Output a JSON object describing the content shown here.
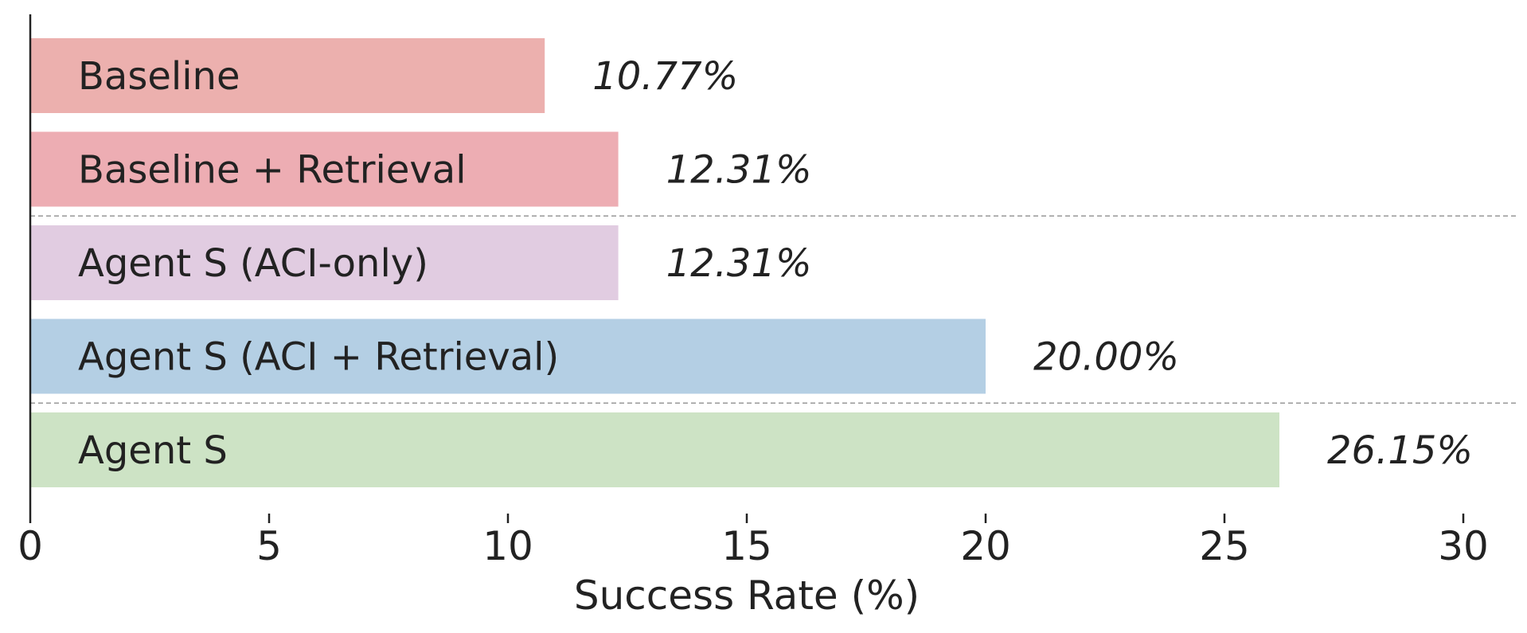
{
  "chart_data": {
    "type": "bar",
    "orientation": "horizontal",
    "categories": [
      "Baseline",
      "Baseline + Retrieval",
      "Agent S (ACI-only)",
      "Agent S (ACI + Retrieval)",
      "Agent S"
    ],
    "values": [
      10.77,
      12.31,
      12.31,
      20.0,
      26.15
    ],
    "value_labels": [
      "10.77%",
      "12.31%",
      "12.31%",
      "20.00%",
      "26.15%"
    ],
    "colors": [
      "#ecb0ae",
      "#edadb3",
      "#e1cce1",
      "#b4cfe4",
      "#cde3c5"
    ],
    "xlabel": "Success Rate (%)",
    "ylabel": "",
    "title": "",
    "xlim": [
      0,
      31
    ],
    "xticks": [
      0,
      5,
      10,
      15,
      20,
      25,
      30
    ],
    "xtick_labels": [
      "0",
      "5",
      "10",
      "15",
      "20",
      "25",
      "30"
    ],
    "group_separators_after_index": [
      1,
      3
    ],
    "grid": false,
    "legend": "none"
  }
}
